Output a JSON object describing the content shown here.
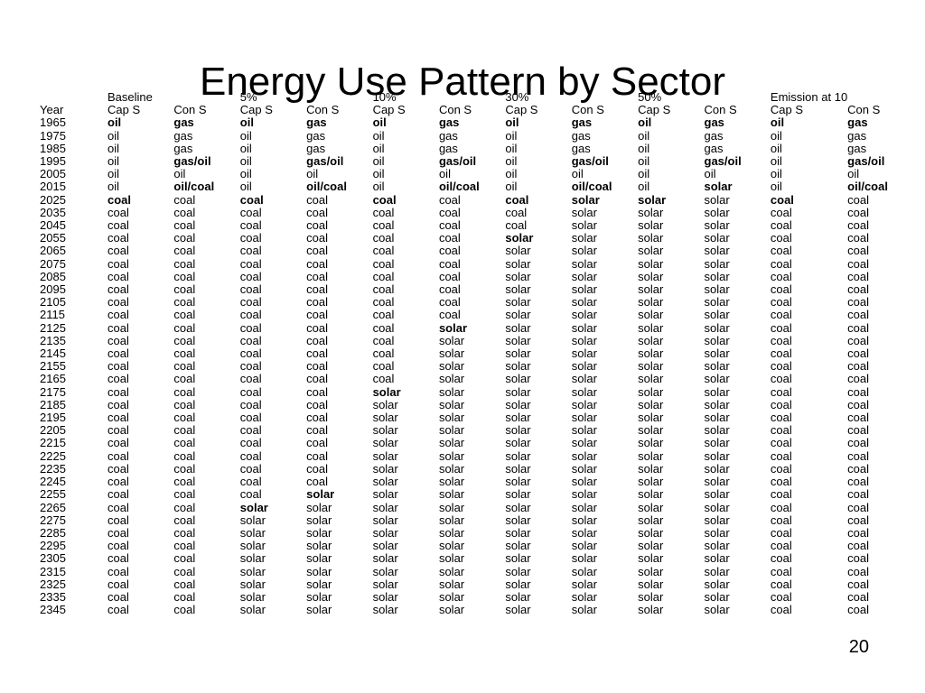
{
  "slide": {
    "title": "Energy Use Pattern by Sector",
    "page_number": "20"
  },
  "table": {
    "group_headers": [
      "",
      "Baseline",
      "",
      "5%",
      "",
      "10%",
      "",
      "30%",
      "",
      "50%",
      "",
      "Emission at 10",
      ""
    ],
    "column_headers": [
      "Year",
      "Cap S",
      "Con S",
      "Cap S",
      "Con S",
      "Cap S",
      "Con S",
      "Cap S",
      "Con S",
      "Cap S",
      "Con S",
      "Cap S",
      "Con S"
    ],
    "rows": [
      {
        "year": "1965",
        "cells": [
          "oil",
          "gas",
          "oil",
          "gas",
          "oil",
          "gas",
          "oil",
          "gas",
          "oil",
          "gas",
          "oil",
          "gas"
        ],
        "bold": [
          1,
          1,
          1,
          1,
          1,
          1,
          1,
          1,
          1,
          1,
          1,
          1
        ]
      },
      {
        "year": "1975",
        "cells": [
          "oil",
          "gas",
          "oil",
          "gas",
          "oil",
          "gas",
          "oil",
          "gas",
          "oil",
          "gas",
          "oil",
          "gas"
        ],
        "bold": [
          0,
          0,
          0,
          0,
          0,
          0,
          0,
          0,
          0,
          0,
          0,
          0
        ]
      },
      {
        "year": "1985",
        "cells": [
          "oil",
          "gas",
          "oil",
          "gas",
          "oil",
          "gas",
          "oil",
          "gas",
          "oil",
          "gas",
          "oil",
          "gas"
        ],
        "bold": [
          0,
          0,
          0,
          0,
          0,
          0,
          0,
          0,
          0,
          0,
          0,
          0
        ]
      },
      {
        "year": "1995",
        "cells": [
          "oil",
          "gas/oil",
          "oil",
          "gas/oil",
          "oil",
          "gas/oil",
          "oil",
          "gas/oil",
          "oil",
          "gas/oil",
          "oil",
          "gas/oil"
        ],
        "bold": [
          0,
          1,
          0,
          1,
          0,
          1,
          0,
          1,
          0,
          1,
          0,
          1
        ]
      },
      {
        "year": "2005",
        "cells": [
          "oil",
          "oil",
          "oil",
          "oil",
          "oil",
          "oil",
          "oil",
          "oil",
          "oil",
          "oil",
          "oil",
          "oil"
        ],
        "bold": [
          0,
          0,
          0,
          0,
          0,
          0,
          0,
          0,
          0,
          0,
          0,
          0
        ]
      },
      {
        "year": "2015",
        "cells": [
          "oil",
          "oil/coal",
          "oil",
          "oil/coal",
          "oil",
          "oil/coal",
          "oil",
          "oil/coal",
          "oil",
          "solar",
          "oil",
          "oil/coal"
        ],
        "bold": [
          0,
          1,
          0,
          1,
          0,
          1,
          0,
          1,
          0,
          1,
          0,
          1
        ]
      },
      {
        "year": "2025",
        "cells": [
          "coal",
          "coal",
          "coal",
          "coal",
          "coal",
          "coal",
          "coal",
          "solar",
          "solar",
          "solar",
          "coal",
          "coal"
        ],
        "bold": [
          1,
          0,
          1,
          0,
          1,
          0,
          1,
          1,
          1,
          0,
          1,
          0
        ]
      },
      {
        "year": "2035",
        "cells": [
          "coal",
          "coal",
          "coal",
          "coal",
          "coal",
          "coal",
          "coal",
          "solar",
          "solar",
          "solar",
          "coal",
          "coal"
        ],
        "bold": [
          0,
          0,
          0,
          0,
          0,
          0,
          0,
          0,
          0,
          0,
          0,
          0
        ]
      },
      {
        "year": "2045",
        "cells": [
          "coal",
          "coal",
          "coal",
          "coal",
          "coal",
          "coal",
          "coal",
          "solar",
          "solar",
          "solar",
          "coal",
          "coal"
        ],
        "bold": [
          0,
          0,
          0,
          0,
          0,
          0,
          0,
          0,
          0,
          0,
          0,
          0
        ]
      },
      {
        "year": "2055",
        "cells": [
          "coal",
          "coal",
          "coal",
          "coal",
          "coal",
          "coal",
          "solar",
          "solar",
          "solar",
          "solar",
          "coal",
          "coal"
        ],
        "bold": [
          0,
          0,
          0,
          0,
          0,
          0,
          1,
          0,
          0,
          0,
          0,
          0
        ]
      },
      {
        "year": "2065",
        "cells": [
          "coal",
          "coal",
          "coal",
          "coal",
          "coal",
          "coal",
          "solar",
          "solar",
          "solar",
          "solar",
          "coal",
          "coal"
        ],
        "bold": [
          0,
          0,
          0,
          0,
          0,
          0,
          0,
          0,
          0,
          0,
          0,
          0
        ]
      },
      {
        "year": "2075",
        "cells": [
          "coal",
          "coal",
          "coal",
          "coal",
          "coal",
          "coal",
          "solar",
          "solar",
          "solar",
          "solar",
          "coal",
          "coal"
        ],
        "bold": [
          0,
          0,
          0,
          0,
          0,
          0,
          0,
          0,
          0,
          0,
          0,
          0
        ]
      },
      {
        "year": "2085",
        "cells": [
          "coal",
          "coal",
          "coal",
          "coal",
          "coal",
          "coal",
          "solar",
          "solar",
          "solar",
          "solar",
          "coal",
          "coal"
        ],
        "bold": [
          0,
          0,
          0,
          0,
          0,
          0,
          0,
          0,
          0,
          0,
          0,
          0
        ]
      },
      {
        "year": "2095",
        "cells": [
          "coal",
          "coal",
          "coal",
          "coal",
          "coal",
          "coal",
          "solar",
          "solar",
          "solar",
          "solar",
          "coal",
          "coal"
        ],
        "bold": [
          0,
          0,
          0,
          0,
          0,
          0,
          0,
          0,
          0,
          0,
          0,
          0
        ]
      },
      {
        "year": "2105",
        "cells": [
          "coal",
          "coal",
          "coal",
          "coal",
          "coal",
          "coal",
          "solar",
          "solar",
          "solar",
          "solar",
          "coal",
          "coal"
        ],
        "bold": [
          0,
          0,
          0,
          0,
          0,
          0,
          0,
          0,
          0,
          0,
          0,
          0
        ]
      },
      {
        "year": "2115",
        "cells": [
          "coal",
          "coal",
          "coal",
          "coal",
          "coal",
          "coal",
          "solar",
          "solar",
          "solar",
          "solar",
          "coal",
          "coal"
        ],
        "bold": [
          0,
          0,
          0,
          0,
          0,
          0,
          0,
          0,
          0,
          0,
          0,
          0
        ]
      },
      {
        "year": "2125",
        "cells": [
          "coal",
          "coal",
          "coal",
          "coal",
          "coal",
          "solar",
          "solar",
          "solar",
          "solar",
          "solar",
          "coal",
          "coal"
        ],
        "bold": [
          0,
          0,
          0,
          0,
          0,
          1,
          0,
          0,
          0,
          0,
          0,
          0
        ]
      },
      {
        "year": "2135",
        "cells": [
          "coal",
          "coal",
          "coal",
          "coal",
          "coal",
          "solar",
          "solar",
          "solar",
          "solar",
          "solar",
          "coal",
          "coal"
        ],
        "bold": [
          0,
          0,
          0,
          0,
          0,
          0,
          0,
          0,
          0,
          0,
          0,
          0
        ]
      },
      {
        "year": "2145",
        "cells": [
          "coal",
          "coal",
          "coal",
          "coal",
          "coal",
          "solar",
          "solar",
          "solar",
          "solar",
          "solar",
          "coal",
          "coal"
        ],
        "bold": [
          0,
          0,
          0,
          0,
          0,
          0,
          0,
          0,
          0,
          0,
          0,
          0
        ]
      },
      {
        "year": "2155",
        "cells": [
          "coal",
          "coal",
          "coal",
          "coal",
          "coal",
          "solar",
          "solar",
          "solar",
          "solar",
          "solar",
          "coal",
          "coal"
        ],
        "bold": [
          0,
          0,
          0,
          0,
          0,
          0,
          0,
          0,
          0,
          0,
          0,
          0
        ]
      },
      {
        "year": "2165",
        "cells": [
          "coal",
          "coal",
          "coal",
          "coal",
          "coal",
          "solar",
          "solar",
          "solar",
          "solar",
          "solar",
          "coal",
          "coal"
        ],
        "bold": [
          0,
          0,
          0,
          0,
          0,
          0,
          0,
          0,
          0,
          0,
          0,
          0
        ]
      },
      {
        "year": "2175",
        "cells": [
          "coal",
          "coal",
          "coal",
          "coal",
          "solar",
          "solar",
          "solar",
          "solar",
          "solar",
          "solar",
          "coal",
          "coal"
        ],
        "bold": [
          0,
          0,
          0,
          0,
          1,
          0,
          0,
          0,
          0,
          0,
          0,
          0
        ]
      },
      {
        "year": "2185",
        "cells": [
          "coal",
          "coal",
          "coal",
          "coal",
          "solar",
          "solar",
          "solar",
          "solar",
          "solar",
          "solar",
          "coal",
          "coal"
        ],
        "bold": [
          0,
          0,
          0,
          0,
          0,
          0,
          0,
          0,
          0,
          0,
          0,
          0
        ]
      },
      {
        "year": "2195",
        "cells": [
          "coal",
          "coal",
          "coal",
          "coal",
          "solar",
          "solar",
          "solar",
          "solar",
          "solar",
          "solar",
          "coal",
          "coal"
        ],
        "bold": [
          0,
          0,
          0,
          0,
          0,
          0,
          0,
          0,
          0,
          0,
          0,
          0
        ]
      },
      {
        "year": "2205",
        "cells": [
          "coal",
          "coal",
          "coal",
          "coal",
          "solar",
          "solar",
          "solar",
          "solar",
          "solar",
          "solar",
          "coal",
          "coal"
        ],
        "bold": [
          0,
          0,
          0,
          0,
          0,
          0,
          0,
          0,
          0,
          0,
          0,
          0
        ]
      },
      {
        "year": "2215",
        "cells": [
          "coal",
          "coal",
          "coal",
          "coal",
          "solar",
          "solar",
          "solar",
          "solar",
          "solar",
          "solar",
          "coal",
          "coal"
        ],
        "bold": [
          0,
          0,
          0,
          0,
          0,
          0,
          0,
          0,
          0,
          0,
          0,
          0
        ]
      },
      {
        "year": "2225",
        "cells": [
          "coal",
          "coal",
          "coal",
          "coal",
          "solar",
          "solar",
          "solar",
          "solar",
          "solar",
          "solar",
          "coal",
          "coal"
        ],
        "bold": [
          0,
          0,
          0,
          0,
          0,
          0,
          0,
          0,
          0,
          0,
          0,
          0
        ]
      },
      {
        "year": "2235",
        "cells": [
          "coal",
          "coal",
          "coal",
          "coal",
          "solar",
          "solar",
          "solar",
          "solar",
          "solar",
          "solar",
          "coal",
          "coal"
        ],
        "bold": [
          0,
          0,
          0,
          0,
          0,
          0,
          0,
          0,
          0,
          0,
          0,
          0
        ]
      },
      {
        "year": "2245",
        "cells": [
          "coal",
          "coal",
          "coal",
          "coal",
          "solar",
          "solar",
          "solar",
          "solar",
          "solar",
          "solar",
          "coal",
          "coal"
        ],
        "bold": [
          0,
          0,
          0,
          0,
          0,
          0,
          0,
          0,
          0,
          0,
          0,
          0
        ]
      },
      {
        "year": "2255",
        "cells": [
          "coal",
          "coal",
          "coal",
          "solar",
          "solar",
          "solar",
          "solar",
          "solar",
          "solar",
          "solar",
          "coal",
          "coal"
        ],
        "bold": [
          0,
          0,
          0,
          1,
          0,
          0,
          0,
          0,
          0,
          0,
          0,
          0
        ]
      },
      {
        "year": "2265",
        "cells": [
          "coal",
          "coal",
          "solar",
          "solar",
          "solar",
          "solar",
          "solar",
          "solar",
          "solar",
          "solar",
          "coal",
          "coal"
        ],
        "bold": [
          0,
          0,
          1,
          0,
          0,
          0,
          0,
          0,
          0,
          0,
          0,
          0
        ]
      },
      {
        "year": "2275",
        "cells": [
          "coal",
          "coal",
          "solar",
          "solar",
          "solar",
          "solar",
          "solar",
          "solar",
          "solar",
          "solar",
          "coal",
          "coal"
        ],
        "bold": [
          0,
          0,
          0,
          0,
          0,
          0,
          0,
          0,
          0,
          0,
          0,
          0
        ]
      },
      {
        "year": "2285",
        "cells": [
          "coal",
          "coal",
          "solar",
          "solar",
          "solar",
          "solar",
          "solar",
          "solar",
          "solar",
          "solar",
          "coal",
          "coal"
        ],
        "bold": [
          0,
          0,
          0,
          0,
          0,
          0,
          0,
          0,
          0,
          0,
          0,
          0
        ]
      },
      {
        "year": "2295",
        "cells": [
          "coal",
          "coal",
          "solar",
          "solar",
          "solar",
          "solar",
          "solar",
          "solar",
          "solar",
          "solar",
          "coal",
          "coal"
        ],
        "bold": [
          0,
          0,
          0,
          0,
          0,
          0,
          0,
          0,
          0,
          0,
          0,
          0
        ]
      },
      {
        "year": "2305",
        "cells": [
          "coal",
          "coal",
          "solar",
          "solar",
          "solar",
          "solar",
          "solar",
          "solar",
          "solar",
          "solar",
          "coal",
          "coal"
        ],
        "bold": [
          0,
          0,
          0,
          0,
          0,
          0,
          0,
          0,
          0,
          0,
          0,
          0
        ]
      },
      {
        "year": "2315",
        "cells": [
          "coal",
          "coal",
          "solar",
          "solar",
          "solar",
          "solar",
          "solar",
          "solar",
          "solar",
          "solar",
          "coal",
          "coal"
        ],
        "bold": [
          0,
          0,
          0,
          0,
          0,
          0,
          0,
          0,
          0,
          0,
          0,
          0
        ]
      },
      {
        "year": "2325",
        "cells": [
          "coal",
          "coal",
          "solar",
          "solar",
          "solar",
          "solar",
          "solar",
          "solar",
          "solar",
          "solar",
          "coal",
          "coal"
        ],
        "bold": [
          0,
          0,
          0,
          0,
          0,
          0,
          0,
          0,
          0,
          0,
          0,
          0
        ]
      },
      {
        "year": "2335",
        "cells": [
          "coal",
          "coal",
          "solar",
          "solar",
          "solar",
          "solar",
          "solar",
          "solar",
          "solar",
          "solar",
          "coal",
          "coal"
        ],
        "bold": [
          0,
          0,
          0,
          0,
          0,
          0,
          0,
          0,
          0,
          0,
          0,
          0
        ]
      },
      {
        "year": "2345",
        "cells": [
          "coal",
          "coal",
          "solar",
          "solar",
          "solar",
          "solar",
          "solar",
          "solar",
          "solar",
          "solar",
          "coal",
          "coal"
        ],
        "bold": [
          0,
          0,
          0,
          0,
          0,
          0,
          0,
          0,
          0,
          0,
          0,
          0
        ]
      }
    ]
  }
}
